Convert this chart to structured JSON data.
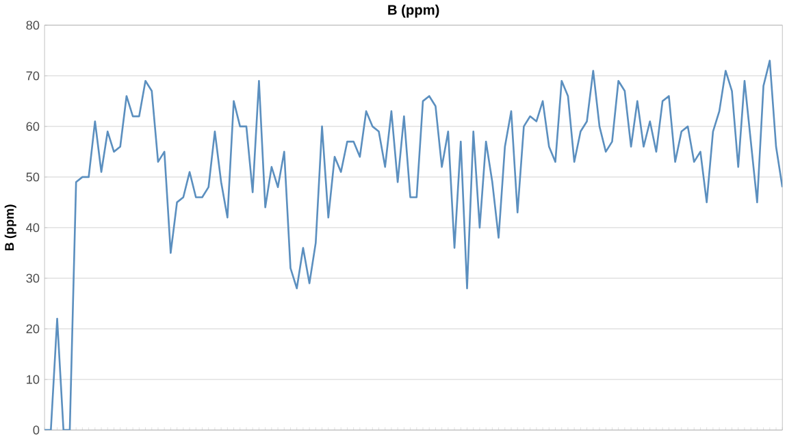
{
  "chart_data": {
    "type": "line",
    "title": "B (ppm)",
    "ylabel": "B (ppm)",
    "categories": [
      null,
      null,
      null,
      null,
      null,
      null,
      null,
      null,
      null,
      null,
      null,
      null,
      null,
      null,
      null,
      null,
      null,
      null,
      null,
      null,
      null,
      null,
      null,
      null,
      null,
      null,
      null,
      null,
      null,
      null,
      null,
      null,
      null,
      null,
      null,
      null,
      null,
      null,
      null,
      null,
      null,
      null,
      null,
      null,
      null,
      null,
      null,
      null,
      null,
      null,
      null,
      null,
      null,
      null,
      null,
      null,
      null,
      null,
      null,
      null,
      null,
      null,
      null,
      null,
      null,
      null,
      null,
      null,
      null,
      null,
      null,
      null,
      null,
      null,
      null,
      null,
      null,
      null,
      null,
      null,
      null,
      null,
      null,
      null,
      null,
      null,
      null,
      null,
      null,
      null,
      null,
      null,
      null,
      null,
      null,
      null,
      null,
      null,
      null,
      null,
      null,
      null,
      null,
      null,
      null,
      null,
      null,
      null,
      null,
      null,
      null,
      null,
      null,
      null,
      null,
      null,
      null,
      null
    ],
    "ylim": [
      0,
      80
    ],
    "yticks": [
      0,
      10,
      20,
      30,
      40,
      50,
      60,
      70,
      80
    ],
    "grid": "y",
    "line_style": "solid",
    "series": [
      {
        "color": "#5b8fbf",
        "values": [
          0,
          0,
          22,
          0,
          0,
          49,
          50,
          50,
          61,
          51,
          59,
          55,
          56,
          66,
          62,
          62,
          69,
          67,
          53,
          55,
          35,
          45,
          46,
          51,
          46,
          46,
          48,
          59,
          49,
          42,
          65,
          60,
          60,
          47,
          69,
          44,
          52,
          48,
          55,
          32,
          28,
          36,
          29,
          37,
          60,
          42,
          54,
          51,
          57,
          57,
          54,
          63,
          60,
          59,
          52,
          63,
          49,
          62,
          46,
          46,
          65,
          66,
          64,
          52,
          59,
          36,
          57,
          28,
          59,
          40,
          57,
          49,
          38,
          56,
          63,
          43,
          60,
          62,
          61,
          65,
          56,
          53,
          69,
          66,
          53,
          59,
          61,
          71,
          60,
          55,
          57,
          69,
          67,
          56,
          65,
          56,
          61,
          55,
          65,
          66,
          53,
          59,
          60,
          53,
          55,
          45,
          59,
          63,
          71,
          67,
          52,
          69,
          57,
          45,
          68,
          73,
          56,
          48
        ]
      }
    ]
  }
}
